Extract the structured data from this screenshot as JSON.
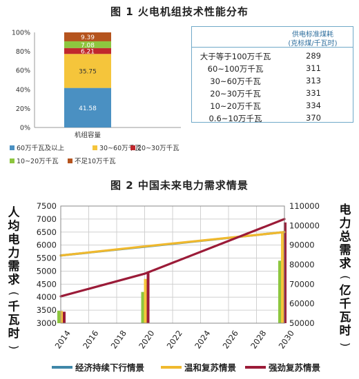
{
  "figure1_title": "图 1 火电机组技术性能分布",
  "figure2_title": "图 2 中国未来电力需求情景",
  "chart_data": [
    {
      "type": "bar",
      "stacked": true,
      "categories": [
        "机组容量"
      ],
      "series": [
        {
          "name": "60万千瓦及以上",
          "value": 41.58,
          "color": "#4a90c2"
        },
        {
          "name": "30~60万千瓦",
          "value": 35.75,
          "color": "#f5c53b"
        },
        {
          "name": "20~30万千瓦",
          "value": 6.21,
          "color": "#c0282d"
        },
        {
          "name": "10~20万千瓦",
          "value": 7.08,
          "color": "#8dc63f"
        },
        {
          "name": "不足10万千瓦",
          "value": 9.39,
          "color": "#b5541e"
        }
      ],
      "data_labels": [
        "41.58",
        "35.75",
        "6.21",
        "7.08",
        "9.39"
      ],
      "y_ticks": [
        "0%",
        "20%",
        "40%",
        "60%",
        "80%",
        "100%"
      ],
      "ylim": [
        0,
        100
      ],
      "legend_position": "bottom"
    },
    {
      "type": "table",
      "header_line1": "供电标准煤耗",
      "header_line2": "(克标煤/千瓦时)",
      "rows": [
        {
          "label": "大于等于100万千瓦",
          "value": "289"
        },
        {
          "label": "60~100万千瓦",
          "value": "311"
        },
        {
          "label": "30~60万千瓦",
          "value": "313"
        },
        {
          "label": "20~30万千瓦",
          "value": "331"
        },
        {
          "label": "10~20万千瓦",
          "value": "334"
        },
        {
          "label": "0.6~10万千瓦",
          "value": "370"
        }
      ]
    },
    {
      "type": "line",
      "x_ticks": [
        "2014",
        "2016",
        "2018",
        "2020",
        "2022",
        "2024",
        "2026",
        "2028",
        "2030"
      ],
      "xlim": [
        2014,
        2030
      ],
      "ylabel_left": "人均电力需求(千瓦时)",
      "ylabel_right": "电力总需求(亿千瓦时)",
      "ylim_left": [
        3000,
        7500
      ],
      "ylim_right": [
        50000,
        110000
      ],
      "y_ticks_left": [
        "3000",
        "3500",
        "4000",
        "4500",
        "5000",
        "5500",
        "6000",
        "6500",
        "7000",
        "7500"
      ],
      "y_ticks_right": [
        "50000",
        "60000",
        "70000",
        "80000",
        "90000",
        "100000",
        "110000"
      ],
      "grid": true,
      "legend_position": "bottom",
      "series": [
        {
          "name": "经济持续下行情景",
          "color": "#3f87a8",
          "line_x": [
            2014,
            2030
          ],
          "line_y": [
            5600,
            6500
          ],
          "bar_x": [
            2014,
            2020,
            2030
          ],
          "bar_values": [
            3480,
            4200,
            5400
          ],
          "bar_color": "#8dc63f"
        },
        {
          "name": "温和复苏情景",
          "color": "#f0b92e",
          "line_x": [
            2014,
            2020,
            2030
          ],
          "line_y": [
            5600,
            5950,
            6500
          ],
          "bar_x": [
            2014,
            2020,
            2030
          ],
          "bar_values": [
            3470,
            4700,
            6500
          ],
          "bar_color": "#f5c53b"
        },
        {
          "name": "强劲复苏情景",
          "color": "#9b1b38",
          "line_x": [
            2014,
            2020,
            2030
          ],
          "line_y": [
            4030,
            4900,
            7000
          ],
          "bar_x": [
            2014,
            2020,
            2030
          ],
          "bar_values": [
            3440,
            4920,
            6870
          ],
          "bar_color": "#9b1b38"
        }
      ],
      "line_axis": "left"
    }
  ]
}
